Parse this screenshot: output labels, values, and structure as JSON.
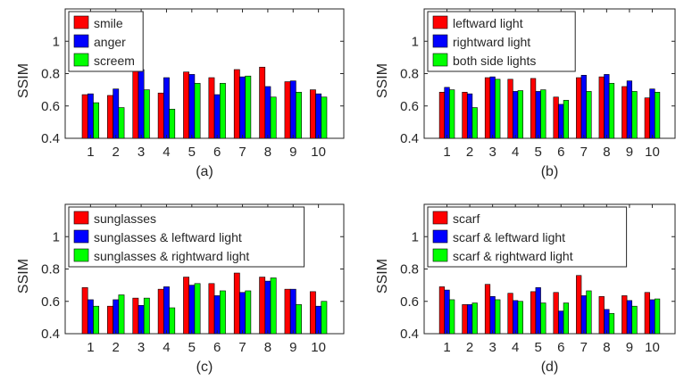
{
  "figure": {
    "panels": [
      {
        "caption": "(a)"
      },
      {
        "caption": "(b)"
      },
      {
        "caption": "(c)"
      },
      {
        "caption": "(d)"
      }
    ]
  },
  "chart_data": [
    {
      "type": "bar",
      "caption": "(a)",
      "ylabel": "SSIM",
      "xlabel": "",
      "categories": [
        "1",
        "2",
        "3",
        "4",
        "5",
        "6",
        "7",
        "8",
        "9",
        "10"
      ],
      "ylim": [
        0.4,
        1.2
      ],
      "yticks": [
        0.4,
        0.6,
        0.8,
        1
      ],
      "legend_position": "top-left",
      "series": [
        {
          "name": "smile",
          "color": "#ff0000",
          "values": [
            0.67,
            0.665,
            0.82,
            0.68,
            0.81,
            0.775,
            0.825,
            0.84,
            0.75,
            0.7
          ]
        },
        {
          "name": "anger",
          "color": "#0000ff",
          "values": [
            0.675,
            0.705,
            0.825,
            0.775,
            0.795,
            0.67,
            0.78,
            0.72,
            0.755,
            0.675
          ]
        },
        {
          "name": "screem",
          "color": "#00ff00",
          "values": [
            0.62,
            0.59,
            0.7,
            0.58,
            0.74,
            0.74,
            0.785,
            0.655,
            0.685,
            0.655
          ]
        }
      ]
    },
    {
      "type": "bar",
      "caption": "(b)",
      "ylabel": "SSIM",
      "xlabel": "",
      "categories": [
        "1",
        "2",
        "3",
        "4",
        "5",
        "6",
        "7",
        "8",
        "9",
        "10"
      ],
      "ylim": [
        0.4,
        1.2
      ],
      "yticks": [
        0.4,
        0.6,
        0.8,
        1
      ],
      "legend_position": "top-left",
      "series": [
        {
          "name": "leftward light",
          "color": "#ff0000",
          "values": [
            0.685,
            0.685,
            0.775,
            0.765,
            0.77,
            0.655,
            0.775,
            0.78,
            0.72,
            0.65
          ]
        },
        {
          "name": "rightward light",
          "color": "#0000ff",
          "values": [
            0.715,
            0.675,
            0.78,
            0.69,
            0.69,
            0.61,
            0.79,
            0.795,
            0.755,
            0.705
          ]
        },
        {
          "name": "both side lights",
          "color": "#00ff00",
          "values": [
            0.7,
            0.59,
            0.765,
            0.695,
            0.7,
            0.635,
            0.69,
            0.74,
            0.69,
            0.685
          ]
        }
      ]
    },
    {
      "type": "bar",
      "caption": "(c)",
      "ylabel": "SSIM",
      "xlabel": "",
      "categories": [
        "1",
        "2",
        "3",
        "4",
        "5",
        "6",
        "7",
        "8",
        "9",
        "10"
      ],
      "ylim": [
        0.4,
        1.2
      ],
      "yticks": [
        0.4,
        0.6,
        0.8,
        1
      ],
      "legend_position": "top-left",
      "series": [
        {
          "name": "sunglasses",
          "color": "#ff0000",
          "values": [
            0.685,
            0.57,
            0.62,
            0.675,
            0.75,
            0.71,
            0.775,
            0.75,
            0.675,
            0.66
          ]
        },
        {
          "name": "sunglasses & leftward light",
          "color": "#0000ff",
          "values": [
            0.61,
            0.61,
            0.575,
            0.69,
            0.7,
            0.635,
            0.655,
            0.725,
            0.675,
            0.57
          ]
        },
        {
          "name": "sunglasses & rightward light",
          "color": "#00ff00",
          "values": [
            0.57,
            0.64,
            0.62,
            0.56,
            0.71,
            0.665,
            0.665,
            0.745,
            0.58,
            0.6
          ]
        }
      ]
    },
    {
      "type": "bar",
      "caption": "(d)",
      "ylabel": "SSIM",
      "xlabel": "",
      "categories": [
        "1",
        "2",
        "3",
        "4",
        "5",
        "6",
        "7",
        "8",
        "9",
        "10"
      ],
      "ylim": [
        0.4,
        1.2
      ],
      "yticks": [
        0.4,
        0.6,
        0.8,
        1
      ],
      "legend_position": "top-left",
      "series": [
        {
          "name": "scarf",
          "color": "#ff0000",
          "values": [
            0.69,
            0.58,
            0.705,
            0.65,
            0.66,
            0.655,
            0.76,
            0.63,
            0.635,
            0.655
          ]
        },
        {
          "name": "scarf & leftward light",
          "color": "#0000ff",
          "values": [
            0.67,
            0.58,
            0.63,
            0.605,
            0.685,
            0.54,
            0.635,
            0.55,
            0.605,
            0.61
          ]
        },
        {
          "name": "scarf & rightward light",
          "color": "#00ff00",
          "values": [
            0.61,
            0.59,
            0.61,
            0.6,
            0.59,
            0.59,
            0.665,
            0.525,
            0.57,
            0.615
          ]
        }
      ]
    }
  ]
}
